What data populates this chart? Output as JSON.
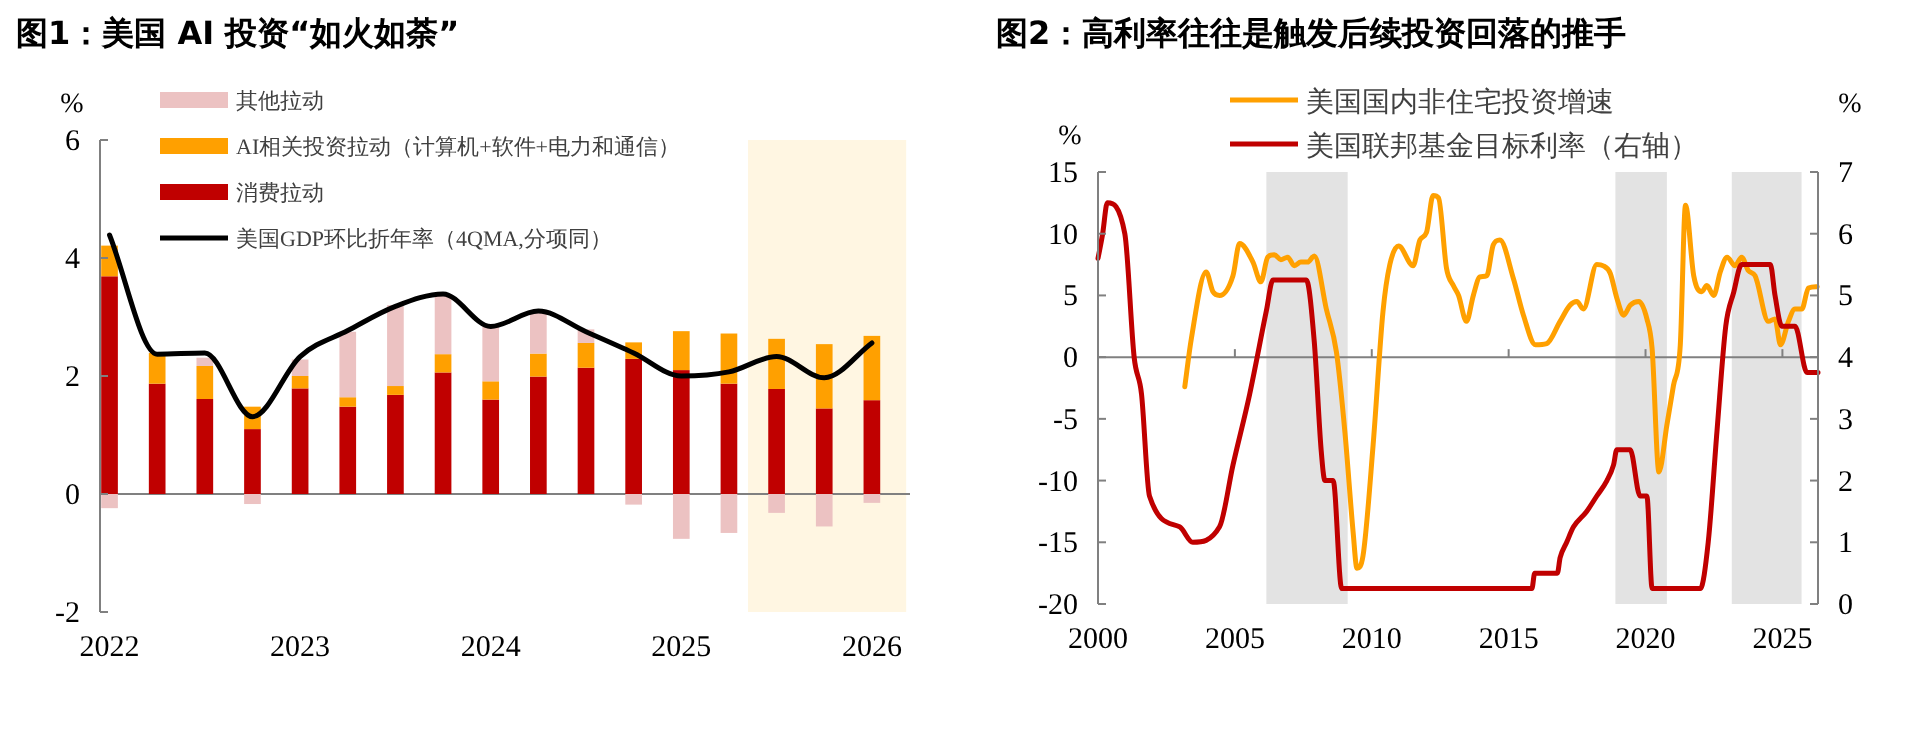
{
  "chart_data": [
    {
      "type": "bar",
      "title": "图1：美国 AI 投资“如火如荼”",
      "ylabel": "%",
      "stacked": true,
      "legend": "top",
      "x": [
        2022,
        2022.25,
        2022.5,
        2022.75,
        2023,
        2023.25,
        2023.5,
        2023.75,
        2024,
        2024.25,
        2024.5,
        2024.75,
        2025,
        2025.25,
        2025.5,
        2025.75,
        2026
      ],
      "series": [
        {
          "name": "消费拉动",
          "color": "#c00000",
          "values": [
            3.69,
            1.87,
            1.61,
            1.1,
            1.79,
            1.48,
            1.68,
            2.06,
            1.6,
            1.99,
            2.14,
            2.29,
            2.1,
            1.87,
            1.78,
            1.45,
            1.59
          ]
        },
        {
          "name": "AI相关投资拉动（计算机+软件+电力和通信）",
          "color": "#ffa000",
          "values": [
            0.52,
            0.52,
            0.56,
            0.38,
            0.21,
            0.16,
            0.15,
            0.31,
            0.31,
            0.39,
            0.42,
            0.28,
            0.66,
            0.85,
            0.85,
            1.09,
            1.09
          ]
        },
        {
          "name": "其他拉动",
          "color": "#ecc2c2",
          "values": [
            -0.24,
            0,
            0.14,
            -0.17,
            0.28,
            1.11,
            1.37,
            1.02,
            0.93,
            0.71,
            0.23,
            -0.18,
            -0.76,
            -0.66,
            -0.32,
            -0.55,
            -0.15
          ]
        },
        {
          "name": "美国GDP环比折年率（4QMA,分项同）",
          "type": "line",
          "color": "#000000",
          "values": [
            4.39,
            2.37,
            2.39,
            1.31,
            2.33,
            2.77,
            3.18,
            3.39,
            2.84,
            3.1,
            2.75,
            2.39,
            2.0,
            2.07,
            2.33,
            1.97,
            2.56
          ]
        }
      ],
      "xlim": [
        2021.95,
        2026.2
      ],
      "xticks": [
        2022,
        2023,
        2024,
        2025,
        2026
      ],
      "ylim": [
        -2,
        6
      ],
      "yticks": [
        {
          "value": -2,
          "label": "-2"
        },
        0,
        2,
        4,
        6
      ],
      "bands": [
        {
          "axis": "x",
          "from": 2025.35,
          "to": 2026.18,
          "color": "#fff6e2"
        }
      ]
    },
    {
      "type": "line",
      "title": "图2：高利率往往是触发后续投资回落的推手",
      "ylabel": "%",
      "y2label": "%",
      "legend": "top",
      "series": [
        {
          "name": "美国国内非住宅投资增速",
          "color": "#ffa000",
          "x": [
            2003.17,
            2003.41,
            2003.95,
            2004.2,
            2004.44,
            2004.93,
            2005.17,
            2005.66,
            2005.95,
            2006.2,
            2006.44,
            2006.68,
            2006.93,
            2007.17,
            2007.41,
            2007.66,
            2007.9,
            2008.34,
            2008.71,
            2009.02,
            2009.32,
            2009.46,
            2009.68,
            2010.05,
            2010.41,
            2010.66,
            2010.98,
            2011.51,
            2011.76,
            2012.0,
            2012.24,
            2012.44,
            2012.73,
            2012.98,
            2013.17,
            2013.46,
            2013.71,
            2013.95,
            2014.2,
            2014.44,
            2014.68,
            2015.17,
            2015.54,
            2015.98,
            2016.39,
            2016.88,
            2017.24,
            2017.49,
            2017.73,
            2018.22,
            2018.46,
            2018.71,
            2018.95,
            2019.2,
            2019.44,
            2019.76,
            2020.05,
            2020.24,
            2020.49,
            2020.78,
            2021.02,
            2021.27,
            2021.46,
            2021.76,
            2022.05,
            2022.24,
            2022.49,
            2022.73,
            2022.98,
            2023.27,
            2023.51,
            2023.76,
            2024.0,
            2024.49,
            2024.73,
            2024.93,
            2025.22,
            2025.46,
            2025.71,
            2025.95,
            2026.27
          ],
          "values": [
            -2.4,
            1.5,
            6.9,
            5.3,
            5.0,
            6.6,
            9.2,
            7.7,
            6.1,
            8.1,
            8.3,
            7.9,
            8.1,
            7.4,
            7.7,
            7.7,
            8.2,
            3.9,
            0.4,
            -6.1,
            -14.2,
            -17.1,
            -16.1,
            -7.1,
            3.7,
            7.5,
            9.0,
            7.4,
            9.5,
            10.1,
            13.1,
            12.9,
            7.2,
            5.8,
            5.0,
            2.9,
            5.0,
            6.5,
            6.6,
            9.1,
            9.5,
            6.4,
            3.4,
            1.0,
            1.1,
            2.9,
            4.2,
            4.5,
            3.9,
            7.5,
            7.4,
            6.8,
            4.8,
            3.4,
            4.2,
            4.5,
            3.1,
            0.7,
            -9.3,
            -5.5,
            -2.3,
            1.0,
            12.3,
            6.6,
            5.3,
            5.8,
            5.0,
            6.9,
            8.1,
            7.4,
            8.1,
            7.0,
            6.6,
            2.9,
            3.1,
            1.0,
            2.9,
            3.9,
            3.9,
            5.6,
            5.7
          ]
        },
        {
          "name": "美国联邦基金目标利率（右轴）",
          "color": "#c00000",
          "axis": "y2",
          "x": [
            2000.0,
            2000.17,
            2000.34,
            2000.98,
            2001.32,
            2001.59,
            2001.88,
            2002.98,
            2003.46,
            2004.44,
            2004.93,
            2005.54,
            2006.15,
            2006.39,
            2007.61,
            2007.9,
            2008.15,
            2008.29,
            2008.59,
            2008.9,
            2015.85,
            2015.95,
            2016.78,
            2016.88,
            2017.12,
            2017.37,
            2017.85,
            2018.22,
            2018.59,
            2018.83,
            2018.95,
            2019.44,
            2019.8,
            2020.05,
            2020.24,
            2022.0,
            2022.29,
            2022.61,
            2022.93,
            2023.22,
            2023.51,
            2024.56,
            2024.73,
            2024.98,
            2025.46,
            2025.9,
            2026.3
          ],
          "values": [
            5.6,
            6.0,
            6.5,
            6.0,
            4.0,
            3.4,
            1.75,
            1.25,
            1.0,
            1.25,
            2.25,
            3.4,
            4.75,
            5.25,
            5.25,
            4.25,
            2.5,
            2.0,
            2.0,
            0.25,
            0.25,
            0.5,
            0.5,
            0.75,
            1.0,
            1.25,
            1.5,
            1.75,
            2.0,
            2.25,
            2.5,
            2.5,
            1.75,
            1.75,
            0.25,
            0.25,
            1.0,
            2.8,
            4.5,
            5.05,
            5.5,
            5.5,
            5.0,
            4.5,
            4.5,
            3.75,
            3.75
          ]
        }
      ],
      "xlim": [
        2000,
        2026.3
      ],
      "xticks": [
        2000,
        2005,
        2010,
        2015,
        2020,
        2025
      ],
      "ylim": [
        -20,
        15
      ],
      "yticks": [
        {
          "value": -20,
          "label": "-20"
        },
        {
          "value": -15,
          "label": "-15"
        },
        {
          "value": -10,
          "label": "-10"
        },
        {
          "value": -5,
          "label": "-5"
        },
        0,
        5,
        10,
        15
      ],
      "y2lim": [
        0,
        7
      ],
      "y2ticks": [
        0,
        1,
        2,
        3,
        4,
        5,
        6,
        7
      ],
      "bands": [
        {
          "axis": "x",
          "from": 2006.15,
          "to": 2009.12,
          "color": "#e3e3e3"
        },
        {
          "axis": "x",
          "from": 2018.9,
          "to": 2020.78,
          "color": "#e3e3e3"
        },
        {
          "axis": "x",
          "from": 2023.15,
          "to": 2025.7,
          "color": "#e3e3e3"
        }
      ]
    }
  ]
}
